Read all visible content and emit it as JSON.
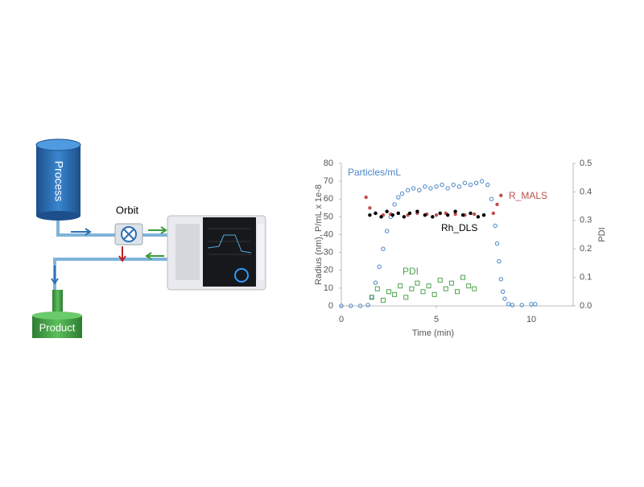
{
  "diagram": {
    "process": "Process",
    "orbit": "Orbit",
    "product": "Product"
  },
  "chart_data": {
    "type": "scatter",
    "x_label": "Time (min)",
    "y_label": "Radius (nm), P/mL x 1e-8",
    "y2_label": "PDI",
    "xlim": [
      0,
      12.2
    ],
    "xticks": [
      0,
      5,
      10
    ],
    "ylim": [
      0,
      80
    ],
    "yticks": [
      0,
      10,
      20,
      30,
      40,
      50,
      60,
      70,
      80
    ],
    "y2lim": [
      0,
      0.5
    ],
    "y2ticks": [
      {
        "value": 0,
        "label": "0.0"
      },
      0.1,
      0.2,
      0.3,
      0.4,
      0.5
    ],
    "grid": false,
    "series": [
      {
        "name": "Particles/mL",
        "color": "#4a86c8",
        "marker": "circle-open",
        "x": [
          0,
          0.5,
          1,
          1.4,
          1.6,
          1.8,
          2.0,
          2.2,
          2.4,
          2.6,
          2.8,
          3.0,
          3.2,
          3.5,
          3.8,
          4.1,
          4.4,
          4.7,
          5.0,
          5.3,
          5.6,
          5.9,
          6.2,
          6.5,
          6.8,
          7.1,
          7.4,
          7.7,
          7.9,
          8.1,
          8.2,
          8.3,
          8.4,
          8.5,
          8.6,
          8.8,
          9.0,
          9.5,
          10.0,
          10.2
        ],
        "values": [
          0,
          0,
          0,
          0.5,
          5,
          13,
          22,
          32,
          42,
          50,
          57,
          61,
          63,
          65,
          66,
          65,
          67,
          66,
          67,
          68,
          66,
          68,
          67,
          69,
          68,
          69,
          70,
          68,
          60,
          45,
          35,
          25,
          15,
          8,
          4,
          1,
          0.5,
          0.5,
          1,
          1
        ]
      },
      {
        "name": "R_MALS",
        "color": "#c0504d",
        "marker": "dot",
        "x": [
          1.3,
          1.5,
          1.8,
          2.2,
          2.6,
          3.0,
          3.5,
          4.0,
          4.5,
          5.0,
          5.5,
          6.0,
          6.5,
          7.0,
          7.5,
          8.0,
          8.2,
          8.4
        ],
        "values": [
          61,
          55,
          52,
          51,
          51.5,
          52,
          51,
          52,
          51.5,
          51,
          52,
          51.5,
          51,
          51.5,
          51,
          52,
          57,
          62
        ]
      },
      {
        "name": "Rh_DLS",
        "color": "#000000",
        "marker": "dot",
        "x": [
          1.5,
          1.8,
          2.1,
          2.4,
          2.7,
          3.0,
          3.3,
          3.6,
          4.0,
          4.4,
          4.8,
          5.2,
          5.6,
          6.0,
          6.4,
          6.8,
          7.2,
          7.5
        ],
        "values": [
          51,
          52,
          50,
          53,
          51,
          52,
          50,
          52,
          53,
          51,
          50,
          52,
          51,
          53,
          51,
          52,
          50,
          51
        ]
      },
      {
        "name": "PDI",
        "color": "#4ea24e",
        "marker": "square-open",
        "axis": "y2",
        "x": [
          1.6,
          1.9,
          2.2,
          2.5,
          2.8,
          3.1,
          3.4,
          3.7,
          4.0,
          4.3,
          4.6,
          4.9,
          5.2,
          5.5,
          5.8,
          6.1,
          6.4,
          6.7,
          7.0
        ],
        "values": [
          0.03,
          0.06,
          0.02,
          0.05,
          0.04,
          0.07,
          0.03,
          0.06,
          0.08,
          0.05,
          0.07,
          0.04,
          0.09,
          0.06,
          0.08,
          0.05,
          0.1,
          0.07,
          0.06
        ]
      }
    ]
  }
}
